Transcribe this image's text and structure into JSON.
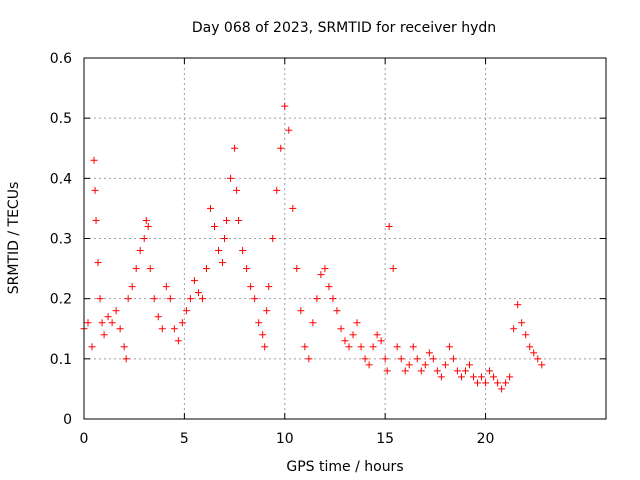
{
  "colors": {
    "series": "#ff0000",
    "grid": "#a0a0a0",
    "axis": "#000000"
  },
  "chart_data": {
    "type": "scatter",
    "marker": "plus",
    "title": "Day 068 of 2023, SRMTID for receiver hydn",
    "xlabel": "GPS time / hours",
    "ylabel": "SRMTID / TECUs",
    "xlim": [
      0,
      26
    ],
    "ylim": [
      0,
      0.6
    ],
    "xticks": [
      0,
      5,
      10,
      15,
      20
    ],
    "xtick_labels": [
      "0",
      "5",
      "10",
      "15",
      "20"
    ],
    "yticks": [
      0,
      0.1,
      0.2,
      0.3,
      0.4,
      0.5,
      0.6
    ],
    "ytick_labels": [
      "0",
      "0.1",
      "0.2",
      "0.3",
      "0.4",
      "0.5",
      "0.6"
    ],
    "grid": true,
    "legend": "none",
    "series": [
      {
        "name": "SRMTID",
        "color": "#ff0000",
        "x": [
          0.0,
          0.2,
          0.4,
          0.5,
          0.55,
          0.6,
          0.7,
          0.8,
          0.9,
          1.0,
          1.2,
          1.4,
          1.6,
          1.8,
          2.0,
          2.1,
          2.2,
          2.4,
          2.6,
          2.8,
          3.0,
          3.1,
          3.2,
          3.3,
          3.5,
          3.7,
          3.9,
          4.1,
          4.3,
          4.5,
          4.7,
          4.9,
          5.1,
          5.3,
          5.5,
          5.7,
          5.9,
          6.1,
          6.3,
          6.5,
          6.7,
          6.9,
          7.0,
          7.1,
          7.3,
          7.5,
          7.6,
          7.7,
          7.9,
          8.1,
          8.3,
          8.5,
          8.7,
          8.9,
          9.0,
          9.1,
          9.2,
          9.4,
          9.6,
          9.8,
          10.0,
          10.2,
          10.4,
          10.6,
          10.8,
          11.0,
          11.2,
          11.4,
          11.6,
          11.8,
          12.0,
          12.2,
          12.4,
          12.6,
          12.8,
          13.0,
          13.2,
          13.4,
          13.6,
          13.8,
          14.0,
          14.2,
          14.4,
          14.6,
          14.8,
          15.0,
          15.1,
          15.2,
          15.4,
          15.6,
          15.8,
          16.0,
          16.2,
          16.4,
          16.6,
          16.8,
          17.0,
          17.2,
          17.4,
          17.6,
          17.8,
          18.0,
          18.2,
          18.4,
          18.6,
          18.8,
          19.0,
          19.2,
          19.4,
          19.6,
          19.8,
          20.0,
          20.2,
          20.4,
          20.6,
          20.8,
          21.0,
          21.2,
          21.4,
          21.6,
          21.8,
          22.0,
          22.2,
          22.4,
          22.6,
          22.8
        ],
        "y": [
          0.15,
          0.16,
          0.12,
          0.43,
          0.38,
          0.33,
          0.26,
          0.2,
          0.16,
          0.14,
          0.17,
          0.16,
          0.18,
          0.15,
          0.12,
          0.1,
          0.2,
          0.22,
          0.25,
          0.28,
          0.3,
          0.33,
          0.32,
          0.25,
          0.2,
          0.17,
          0.15,
          0.22,
          0.2,
          0.15,
          0.13,
          0.16,
          0.18,
          0.2,
          0.23,
          0.21,
          0.2,
          0.25,
          0.35,
          0.32,
          0.28,
          0.26,
          0.3,
          0.33,
          0.4,
          0.45,
          0.38,
          0.33,
          0.28,
          0.25,
          0.22,
          0.2,
          0.16,
          0.14,
          0.12,
          0.18,
          0.22,
          0.3,
          0.38,
          0.45,
          0.52,
          0.48,
          0.35,
          0.25,
          0.18,
          0.12,
          0.1,
          0.16,
          0.2,
          0.24,
          0.25,
          0.22,
          0.2,
          0.18,
          0.15,
          0.13,
          0.12,
          0.14,
          0.16,
          0.12,
          0.1,
          0.09,
          0.12,
          0.14,
          0.13,
          0.1,
          0.08,
          0.32,
          0.25,
          0.12,
          0.1,
          0.08,
          0.09,
          0.12,
          0.1,
          0.08,
          0.09,
          0.11,
          0.1,
          0.08,
          0.07,
          0.09,
          0.12,
          0.1,
          0.08,
          0.07,
          0.08,
          0.09,
          0.07,
          0.06,
          0.07,
          0.06,
          0.08,
          0.07,
          0.06,
          0.05,
          0.06,
          0.07,
          0.15,
          0.19,
          0.16,
          0.14,
          0.12,
          0.11,
          0.1,
          0.09
        ]
      }
    ]
  }
}
